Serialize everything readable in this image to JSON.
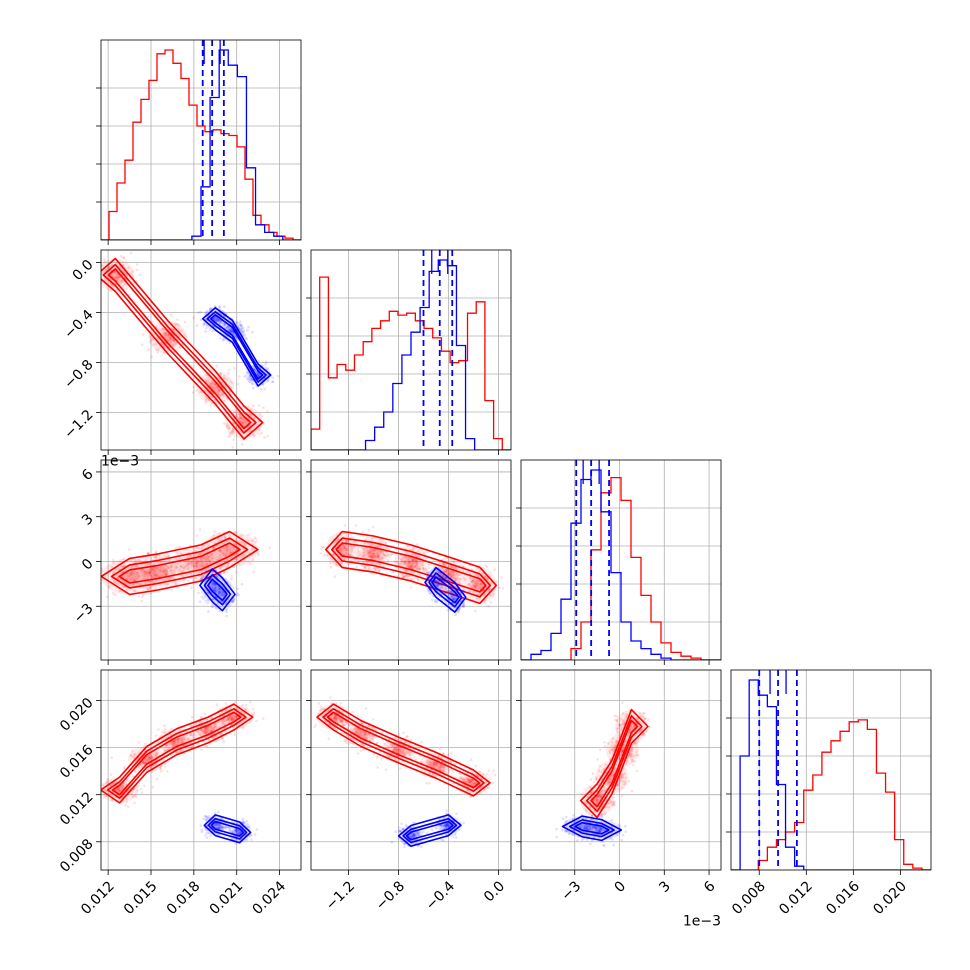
{
  "chart_data": {
    "type": "corner",
    "grid": true,
    "legend": "none",
    "colors": {
      "series_a": "#ff0000",
      "series_b": "#0000ff"
    },
    "parameters": [
      {
        "range": [
          0.0115,
          0.0255
        ],
        "ticks": [
          0.012,
          0.015,
          0.018,
          0.021,
          0.024
        ],
        "tick_labels": [
          "0.012",
          "0.015",
          "0.018",
          "0.021",
          "0.024"
        ],
        "offset_text": ""
      },
      {
        "range": [
          -0.0015,
          0.0001
        ],
        "ticks": [
          -0.0012,
          -0.0008,
          -0.0004,
          0.0
        ],
        "tick_labels": [
          "−1.2",
          "−0.8",
          "−0.4",
          "0.0"
        ],
        "offset_text": "1e−3"
      },
      {
        "range": [
          -0.0066,
          0.0068
        ],
        "ticks": [
          -0.003,
          0.0,
          0.003,
          0.006
        ],
        "tick_labels": [
          "−3",
          "0",
          "3",
          "6"
        ],
        "offset_text": "1e−3"
      },
      {
        "range": [
          0.0056,
          0.0226
        ],
        "ticks": [
          0.008,
          0.012,
          0.016,
          0.02
        ],
        "tick_labels": [
          "0.008",
          "0.012",
          "0.016",
          "0.020"
        ],
        "offset_text": ""
      }
    ],
    "series": [
      {
        "color": "#ff0000",
        "hist_edges": [
          [
            0.0115,
            0.0255
          ],
          [
            -0.0015,
            0.0001
          ],
          [
            -0.0066,
            0.0068
          ],
          [
            0.0056,
            0.0226
          ]
        ],
        "hists": [
          [
            0,
            0.15,
            0.3,
            0.42,
            0.62,
            0.74,
            0.84,
            0.98,
            1.0,
            0.93,
            0.85,
            0.71,
            0.6,
            0.57,
            0.58,
            0.56,
            0.55,
            0.49,
            0.32,
            0.13,
            0.08,
            0.04,
            0.02,
            0.01,
            0
          ],
          [
            0.11,
            0.91,
            0.38,
            0.45,
            0.42,
            0.5,
            0.57,
            0.64,
            0.68,
            0.73,
            0.71,
            0.72,
            0.68,
            0.64,
            0.59,
            0.52,
            0.46,
            0.47,
            0.72,
            0.78,
            0.26,
            0.06,
            0
          ],
          [
            0,
            0,
            0,
            0,
            0,
            0.06,
            0.2,
            0.58,
            0.88,
            0.96,
            0.84,
            0.54,
            0.34,
            0.2,
            0.09,
            0.04,
            0.02,
            0.01,
            0,
            0
          ],
          [
            0,
            0,
            0,
            0.05,
            0.12,
            0.16,
            0.2,
            0.25,
            0.42,
            0.5,
            0.62,
            0.68,
            0.73,
            0.78,
            0.79,
            0.74,
            0.51,
            0.41,
            0.16,
            0.03,
            0.01,
            0
          ]
        ],
        "medians": [
          null,
          null,
          null,
          null
        ],
        "quantile_lines": [
          [],
          [],
          [],
          []
        ],
        "clouds": [
          {
            "pair": [
              0,
              1
            ],
            "centers": [
              [
                0.0125,
                -0.0001
              ],
              [
                0.0162,
                -0.0006
              ],
              [
                0.0195,
                -0.001
              ],
              [
                0.0215,
                -0.00128
              ]
            ],
            "spread": [
              0.0012,
              0.00012
            ]
          },
          {
            "pair": [
              0,
              2
            ],
            "centers": [
              [
                0.0135,
                -0.001
              ],
              [
                0.0155,
                -0.0007
              ],
              [
                0.0185,
                -0.0001
              ],
              [
                0.0205,
                0.0008
              ]
            ],
            "spread": [
              0.0018,
              0.0011
            ]
          },
          {
            "pair": [
              1,
              2
            ],
            "centers": [
              [
                -0.00125,
                0.0008
              ],
              [
                -0.001,
                0.0005
              ],
              [
                -0.0007,
                -0.0001
              ],
              [
                -0.0004,
                -0.0009
              ],
              [
                -0.00015,
                -0.0016
              ]
            ],
            "spread": [
              0.00012,
              0.0011
            ]
          },
          {
            "pair": [
              0,
              3
            ],
            "centers": [
              [
                0.0128,
                0.0124
              ],
              [
                0.0147,
                0.015
              ],
              [
                0.0168,
                0.0165
              ],
              [
                0.019,
                0.0175
              ],
              [
                0.0208,
                0.0186
              ]
            ],
            "spread": [
              0.0012,
              0.001
            ]
          },
          {
            "pair": [
              1,
              3
            ],
            "centers": [
              [
                -0.00132,
                0.0186
              ],
              [
                -0.0011,
                0.0172
              ],
              [
                -0.0008,
                0.0158
              ],
              [
                -0.0005,
                0.0145
              ],
              [
                -0.0002,
                0.013
              ]
            ],
            "spread": [
              0.00012,
              0.001
            ]
          },
          {
            "pair": [
              2,
              3
            ],
            "centers": [
              [
                -0.0015,
                0.0115
              ],
              [
                -0.0005,
                0.0135
              ],
              [
                0.0002,
                0.0158
              ],
              [
                0.0008,
                0.0178
              ]
            ],
            "spread": [
              0.001,
              0.0013
            ]
          }
        ]
      },
      {
        "color": "#0000ff",
        "hists": [
          [
            0,
            0,
            0,
            0,
            0,
            0,
            0,
            0,
            0,
            0,
            0.02,
            0.28,
            0.75,
            1.0,
            0.92,
            0.86,
            0.38,
            0.08,
            0.04,
            0.02,
            0,
            0
          ],
          [
            0,
            0,
            0,
            0,
            0,
            0,
            0.05,
            0.12,
            0.2,
            0.35,
            0.5,
            0.62,
            0.75,
            0.94,
            1.0,
            0.97,
            0.55,
            0.06,
            0,
            0,
            0,
            0
          ],
          [
            0,
            0.03,
            0.05,
            0.14,
            0.32,
            0.72,
            0.95,
            1.0,
            0.78,
            0.46,
            0.2,
            0.1,
            0.06,
            0.03,
            0.01,
            0,
            0,
            0,
            0,
            0
          ],
          [
            0,
            0.6,
            1.0,
            0.92,
            0.86,
            0.45,
            0.12,
            0.02,
            0,
            0,
            0,
            0,
            0,
            0,
            0,
            0,
            0,
            0,
            0,
            0,
            0,
            0
          ]
        ],
        "medians": [
          0.01928,
          -0.00047,
          -0.0019,
          0.0096
        ],
        "quantile_lines": [
          [
            0.01862,
            0.01928,
            0.0201
          ],
          [
            -0.0006,
            -0.00047,
            -0.00037
          ],
          [
            -0.0029,
            -0.0019,
            -0.0007
          ],
          [
            0.008,
            0.0096,
            0.0112
          ]
        ],
        "clouds": [
          {
            "pair": [
              0,
              1
            ],
            "centers": [
              [
                0.0195,
                -0.00045
              ],
              [
                0.0207,
                -0.00055
              ],
              [
                0.0225,
                -0.0009
              ]
            ],
            "spread": [
              0.0008,
              8e-05
            ]
          },
          {
            "pair": [
              0,
              2
            ],
            "centers": [
              [
                0.0193,
                -0.0016
              ],
              [
                0.02,
                -0.0022
              ]
            ],
            "spread": [
              0.0008,
              0.001
            ]
          },
          {
            "pair": [
              1,
              2
            ],
            "centers": [
              [
                -0.0005,
                -0.0014
              ],
              [
                -0.00035,
                -0.0024
              ]
            ],
            "spread": [
              8e-05,
              0.0009
            ]
          },
          {
            "pair": [
              0,
              3
            ],
            "centers": [
              [
                0.0195,
                0.0094
              ],
              [
                0.0212,
                0.0088
              ]
            ],
            "spread": [
              0.0007,
              0.0008
            ]
          },
          {
            "pair": [
              1,
              3
            ],
            "centers": [
              [
                -0.0007,
                0.0085
              ],
              [
                -0.0004,
                0.0094
              ]
            ],
            "spread": [
              9e-05,
              0.0008
            ]
          },
          {
            "pair": [
              2,
              3
            ],
            "centers": [
              [
                -0.0025,
                0.0093
              ],
              [
                -0.0012,
                0.009
              ]
            ],
            "spread": [
              0.0012,
              0.0008
            ]
          }
        ]
      }
    ]
  }
}
